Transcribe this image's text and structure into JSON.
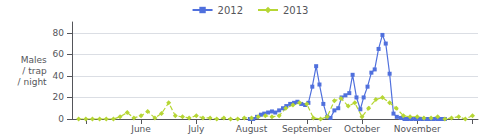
{
  "chart_data": {
    "type": "line",
    "y_label": "Males\n/ trap\n/ night",
    "xlim": [
      4.75,
      12.1
    ],
    "xticks": [
      {
        "value": 5.0,
        "label": null
      },
      {
        "value": 6.0,
        "label": "June"
      },
      {
        "value": 7.0,
        "label": "July"
      },
      {
        "value": 8.0,
        "label": "August"
      },
      {
        "value": 9.0,
        "label": "September"
      },
      {
        "value": 10.0,
        "label": "October"
      },
      {
        "value": 11.0,
        "label": "November"
      },
      {
        "value": 12.0,
        "label": null
      }
    ],
    "ylim": [
      0,
      90
    ],
    "yticks": [
      0,
      20,
      40,
      60,
      80
    ],
    "grid": true,
    "legend": "top",
    "series": [
      {
        "name": "2012",
        "marker": "square",
        "line_style": "solid",
        "x": [
          7.97,
          8.03,
          8.1,
          8.17,
          8.23,
          8.3,
          8.37,
          8.43,
          8.5,
          8.57,
          8.63,
          8.7,
          8.77,
          8.83,
          8.9,
          8.97,
          9.03,
          9.1,
          9.17,
          9.23,
          9.3,
          9.37,
          9.43,
          9.5,
          9.57,
          9.63,
          9.7,
          9.77,
          9.83,
          9.9,
          9.97,
          10.03,
          10.1,
          10.17,
          10.23,
          10.3,
          10.37,
          10.43,
          10.5,
          10.57,
          10.63,
          10.7,
          10.77,
          10.83,
          10.9,
          10.97,
          11.03,
          11.1,
          11.17,
          11.23,
          11.3,
          11.37,
          11.43,
          11.5
        ],
        "values": [
          0,
          0,
          2,
          4,
          5,
          6,
          7,
          6,
          8,
          10,
          12,
          14,
          15,
          16,
          14,
          13,
          15,
          30,
          49,
          32,
          14,
          2,
          1,
          8,
          10,
          20,
          22,
          24,
          41,
          20,
          9,
          20,
          30,
          43,
          46,
          65,
          78,
          70,
          42,
          5,
          2,
          1,
          0,
          0,
          0,
          0,
          0,
          0,
          0,
          0,
          0,
          0,
          0,
          0
        ]
      },
      {
        "name": "2013",
        "marker": "diamond",
        "line_style": "dashed",
        "x": [
          4.87,
          5.0,
          5.12,
          5.25,
          5.37,
          5.5,
          5.62,
          5.75,
          5.87,
          6.0,
          6.12,
          6.25,
          6.37,
          6.5,
          6.62,
          6.75,
          6.87,
          7.0,
          7.12,
          7.25,
          7.37,
          7.5,
          7.62,
          7.75,
          7.87,
          8.0,
          8.12,
          8.25,
          8.37,
          8.5,
          8.62,
          8.75,
          8.87,
          9.0,
          9.12,
          9.25,
          9.37,
          9.5,
          9.62,
          9.75,
          9.87,
          10.0,
          10.12,
          10.25,
          10.37,
          10.5,
          10.62,
          10.75,
          10.87,
          11.0,
          11.12,
          11.25,
          11.37,
          11.5,
          11.62,
          11.75,
          11.87,
          12.0
        ],
        "values": [
          0,
          0,
          0,
          0,
          0,
          0,
          2,
          6,
          1,
          3,
          7,
          1,
          5,
          15,
          3,
          2,
          1,
          3,
          1,
          1,
          0,
          1,
          0,
          0,
          1,
          1,
          2,
          3,
          2,
          3,
          10,
          13,
          15,
          14,
          1,
          0,
          2,
          17,
          19,
          12,
          15,
          2,
          10,
          18,
          20,
          15,
          10,
          3,
          2,
          2,
          1,
          1,
          2,
          0,
          1,
          2,
          0,
          3
        ]
      }
    ]
  }
}
